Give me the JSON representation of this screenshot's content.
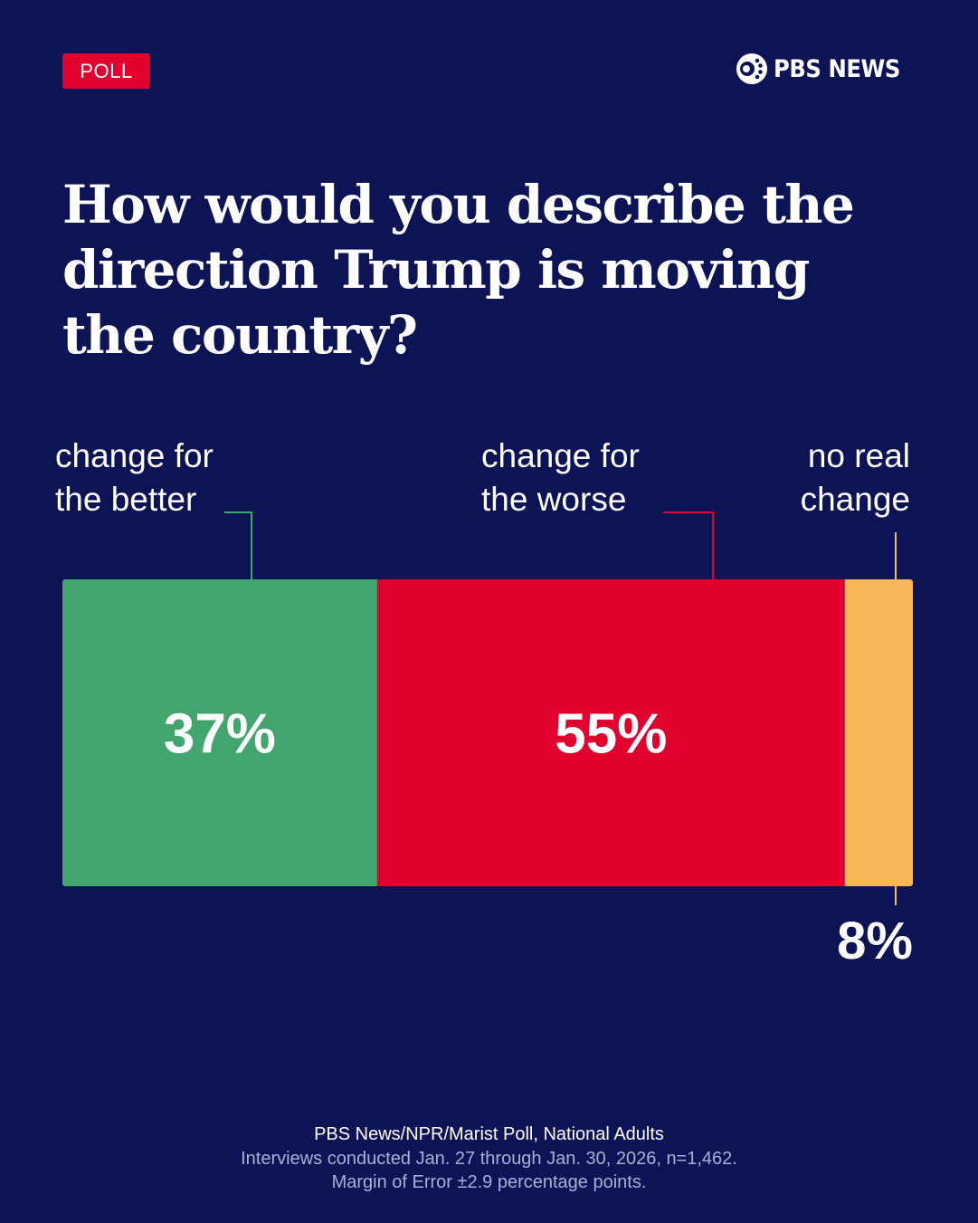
{
  "badge": "POLL",
  "brand": {
    "name": "PBS NEWS",
    "logo_icon": "pbs-head-logo"
  },
  "headline": "How would you describe the direction Trump is moving the country?",
  "chart_data": {
    "type": "bar",
    "orientation": "horizontal-stacked",
    "categories": [
      "change for the better",
      "change for the worse",
      "no real change"
    ],
    "values": [
      37,
      55,
      8
    ],
    "value_labels": [
      "37%",
      "55%",
      "8%"
    ],
    "colors": [
      "#43a56e",
      "#e2002e",
      "#f7b658"
    ],
    "unit": "%",
    "grid": false,
    "legend": "none"
  },
  "labels": {
    "better": "change for\nthe better",
    "worse": "change for\nthe worse",
    "nochange": "no real\nchange"
  },
  "footer": {
    "source": "PBS News/NPR/Marist Poll, National Adults",
    "interviews": "Interviews conducted Jan. 27 through Jan. 30, 2026, n=1,462.",
    "margin": "Margin of Error ±2.9 percentage points."
  }
}
